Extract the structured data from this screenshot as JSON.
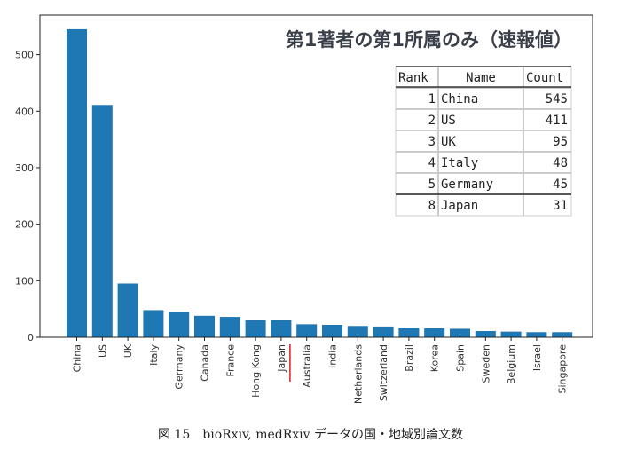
{
  "chart_data": {
    "type": "bar",
    "title": "第1著者の第1所属のみ（速報値）",
    "categories": [
      "China",
      "US",
      "UK",
      "Italy",
      "Germany",
      "Canada",
      "France",
      "Hong Kong",
      "Japan",
      "Australia",
      "India",
      "Netherlands",
      "Switzerland",
      "Brazil",
      "Korea",
      "Spain",
      "Sweden",
      "Belgium",
      "Israel",
      "Singapore"
    ],
    "values": [
      545,
      411,
      95,
      48,
      45,
      38,
      36,
      31,
      31,
      23,
      22,
      20,
      19,
      17,
      16,
      15,
      11,
      10,
      9,
      9
    ],
    "highlight": "Japan",
    "highlight_color": "#e31a1c",
    "bar_color": "#1f77b4",
    "ylim": [
      0,
      570
    ],
    "yticks": [
      0,
      100,
      200,
      300,
      400,
      500
    ],
    "xlabel": "",
    "ylabel": "",
    "grid": false,
    "table": {
      "position": "top-right",
      "headers": [
        "Rank",
        "Name",
        "Count"
      ],
      "rows": [
        {
          "rank": "1",
          "name": "China",
          "count": "545"
        },
        {
          "rank": "2",
          "name": "US",
          "count": "411"
        },
        {
          "rank": "3",
          "name": "UK",
          "count": "95"
        },
        {
          "rank": "4",
          "name": "Italy",
          "count": "48"
        },
        {
          "rank": "5",
          "name": "Germany",
          "count": "45"
        },
        {
          "rank": "8",
          "name": "Japan",
          "count": "31"
        }
      ]
    }
  },
  "caption": "図 15　bioRxiv, medRxiv データの国・地域別論文数"
}
